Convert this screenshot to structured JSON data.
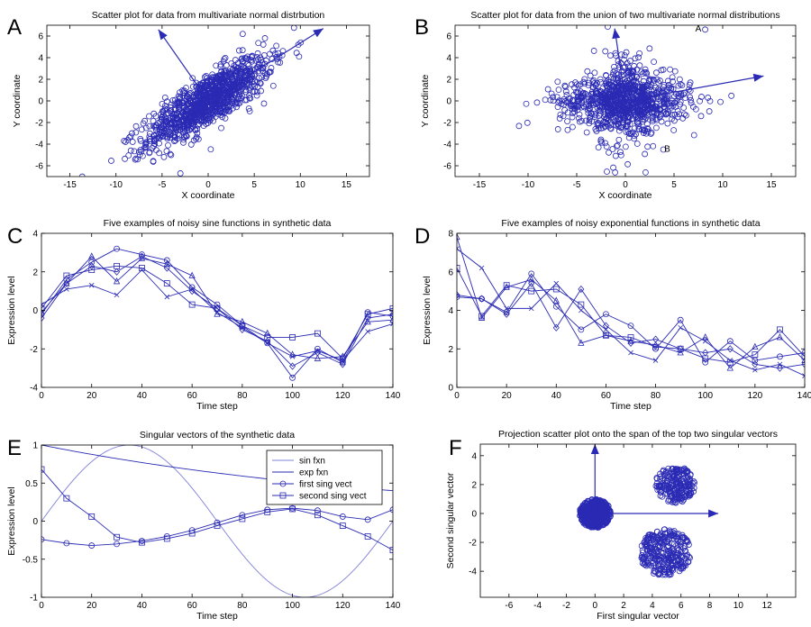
{
  "colors": {
    "series": "#2a2ab4",
    "light_series": "#8080d8",
    "axis": "#000000"
  },
  "chart_data": [
    {
      "panel": "A",
      "type": "scatter",
      "title": "Scatter plot for data from multivariate normal distrbution",
      "xlabel": "X coordinate",
      "ylabel": "Y coordinate",
      "xlim": [
        -17.5,
        17.5
      ],
      "ylim": [
        -7,
        7
      ],
      "xticks": [
        -15,
        -10,
        -5,
        0,
        5,
        10,
        15
      ],
      "yticks": [
        -6,
        -4,
        -2,
        0,
        2,
        4,
        6
      ],
      "cloud": {
        "n": 1100,
        "center": [
          0,
          0
        ],
        "direction_deg": 29,
        "sd_major": 3.8,
        "sd_minor": 1.05
      },
      "arrows": [
        {
          "from": [
            0,
            0
          ],
          "to": [
            12.5,
            6.7
          ]
        },
        {
          "from": [
            0,
            0
          ],
          "to": [
            -5.4,
            6.6
          ]
        }
      ],
      "annotations": []
    },
    {
      "panel": "B",
      "type": "scatter",
      "title": "Scatter plot for data from the union of two multivariate normal distributions",
      "xlabel": "X coordinate",
      "ylabel": "Y coordinate",
      "xlim": [
        -17.5,
        17.5
      ],
      "ylim": [
        -7,
        7
      ],
      "xticks": [
        -15,
        -10,
        -5,
        0,
        5,
        10,
        15
      ],
      "yticks": [
        -6,
        -4,
        -2,
        0,
        2,
        4,
        6
      ],
      "clouds": [
        {
          "n": 700,
          "center": [
            0,
            0
          ],
          "sd_x": 3.4,
          "sd_y": 1.1
        },
        {
          "n": 300,
          "center": [
            0,
            0
          ],
          "sd_x": 1.6,
          "sd_y": 2.5
        }
      ],
      "arrows": [
        {
          "from": [
            0,
            0
          ],
          "to": [
            14.2,
            2.3
          ]
        },
        {
          "from": [
            0,
            0
          ],
          "to": [
            -1.1,
            6.7
          ]
        }
      ],
      "annotations": [
        {
          "text": "A",
          "x": 7.5,
          "y": 6.4,
          "marker": [
            8.2,
            6.6
          ]
        },
        {
          "text": "B",
          "x": 4.3,
          "y": -4.7,
          "marker": [
            3.9,
            -4.5
          ]
        }
      ]
    },
    {
      "panel": "C",
      "type": "line",
      "title": "Five examples of noisy sine functions in synthetic data",
      "xlabel": "Time step",
      "ylabel": "Expression level",
      "xlim": [
        0,
        140
      ],
      "ylim": [
        -4,
        4
      ],
      "xticks": [
        0,
        20,
        40,
        60,
        80,
        100,
        120,
        140
      ],
      "yticks": [
        -4,
        -2,
        0,
        2,
        4
      ],
      "x": [
        0,
        10,
        20,
        30,
        40,
        50,
        60,
        70,
        80,
        90,
        100,
        110,
        120,
        130,
        140
      ],
      "series": [
        {
          "marker": "circle",
          "values": [
            -0.2,
            1.6,
            2.5,
            3.2,
            2.9,
            2.6,
            1.2,
            0.3,
            -0.8,
            -1.7,
            -3.5,
            -2.0,
            -2.7,
            -0.1,
            -0.3
          ]
        },
        {
          "marker": "square",
          "values": [
            0.1,
            1.8,
            2.1,
            2.3,
            2.2,
            1.4,
            0.3,
            0.1,
            -0.8,
            -1.4,
            -1.4,
            -1.2,
            -2.5,
            -0.2,
            0.1
          ]
        },
        {
          "marker": "triangle",
          "values": [
            -0.1,
            1.4,
            2.8,
            1.5,
            2.7,
            2.4,
            1.8,
            -0.2,
            -0.6,
            -1.2,
            -2.3,
            -2.5,
            -2.4,
            -0.6,
            -0.5
          ]
        },
        {
          "marker": "x",
          "values": [
            0.3,
            1.1,
            1.3,
            0.8,
            2.1,
            0.7,
            1.1,
            -0.1,
            -0.9,
            -1.7,
            -2.4,
            -2.1,
            -2.6,
            -1.1,
            -0.7
          ]
        },
        {
          "marker": "diamond",
          "values": [
            -0.4,
            1.4,
            2.3,
            2.0,
            2.8,
            2.2,
            1.0,
            0.1,
            -1.0,
            -1.6,
            -2.9,
            -2.2,
            -2.8,
            -0.4,
            -0.2
          ]
        }
      ]
    },
    {
      "panel": "D",
      "type": "line",
      "title": "Five examples of noisy exponential functions in synthetic data",
      "xlabel": "Time step",
      "ylabel": "Expression level",
      "xlim": [
        0,
        140
      ],
      "ylim": [
        0,
        8
      ],
      "xticks": [
        0,
        20,
        40,
        60,
        80,
        100,
        120,
        140
      ],
      "yticks": [
        0,
        2,
        4,
        6,
        8
      ],
      "x": [
        0,
        10,
        20,
        30,
        40,
        50,
        60,
        70,
        80,
        90,
        100,
        110,
        120,
        130,
        140
      ],
      "series": [
        {
          "marker": "circle",
          "values": [
            4.7,
            4.6,
            3.9,
            5.9,
            4.2,
            3.0,
            3.8,
            3.2,
            2.0,
            3.5,
            1.3,
            2.4,
            1.4,
            1.6,
            1.8
          ]
        },
        {
          "marker": "square",
          "values": [
            6.2,
            3.7,
            5.3,
            5.0,
            5.1,
            4.3,
            2.7,
            2.6,
            2.1,
            2.0,
            1.5,
            1.3,
            1.7,
            3.0,
            1.6
          ]
        },
        {
          "marker": "triangle",
          "values": [
            7.8,
            3.6,
            5.2,
            5.6,
            4.5,
            2.3,
            2.7,
            2.4,
            2.2,
            1.8,
            2.6,
            1.0,
            2.1,
            2.6,
            1.4
          ]
        },
        {
          "marker": "x",
          "values": [
            7.2,
            6.2,
            4.1,
            4.1,
            5.4,
            4.0,
            3.0,
            1.8,
            1.4,
            3.1,
            2.4,
            1.4,
            0.9,
            1.2,
            0.6
          ]
        },
        {
          "marker": "diamond",
          "values": [
            4.8,
            4.6,
            3.8,
            5.4,
            3.1,
            5.1,
            3.2,
            2.3,
            2.5,
            2.0,
            1.8,
            2.0,
            1.2,
            1.0,
            1.2
          ]
        }
      ]
    },
    {
      "panel": "E",
      "type": "line",
      "title": "Singular vectors of the synthetic data",
      "xlabel": "Time step",
      "ylabel": "Expression level",
      "xlim": [
        0,
        140
      ],
      "ylim": [
        -1,
        1
      ],
      "xticks": [
        0,
        20,
        40,
        60,
        80,
        100,
        120,
        140
      ],
      "yticks": [
        -1,
        -0.5,
        0,
        0.5,
        1
      ],
      "ytick_labels": [
        "-1",
        "-0.5",
        "0",
        "0.5",
        "1"
      ],
      "legend": {
        "position": "top-right",
        "entries": [
          "sin fxn",
          "exp fxn",
          "first sing vect",
          "second sing vect"
        ]
      },
      "curves": {
        "sin": {
          "amplitude": 1,
          "period": 140
        },
        "exp": {
          "start": 1,
          "end": 0.4
        }
      },
      "x": [
        0,
        10,
        20,
        30,
        40,
        50,
        60,
        70,
        80,
        90,
        100,
        110,
        120,
        130,
        140
      ],
      "series": [
        {
          "name": "sin fxn",
          "style": "light"
        },
        {
          "name": "exp fxn",
          "style": "dark"
        },
        {
          "name": "first sing vect",
          "marker": "circle",
          "values": [
            -0.24,
            -0.29,
            -0.32,
            -0.3,
            -0.26,
            -0.2,
            -0.12,
            -0.02,
            0.08,
            0.15,
            0.17,
            0.14,
            0.06,
            0.02,
            0.15
          ]
        },
        {
          "name": "second sing vect",
          "marker": "square",
          "values": [
            0.68,
            0.3,
            0.06,
            -0.21,
            -0.28,
            -0.23,
            -0.16,
            -0.06,
            0.03,
            0.12,
            0.16,
            0.08,
            -0.06,
            -0.2,
            -0.38
          ]
        }
      ]
    },
    {
      "panel": "F",
      "type": "scatter",
      "title": "Projection scatter plot onto the span of the top two singular vectors",
      "xlabel": "First singular vector",
      "ylabel": "Second singular vector",
      "xlim": [
        -8,
        14
      ],
      "ylim": [
        -5.8,
        4.8
      ],
      "xticks": [
        -6,
        -4,
        -2,
        0,
        2,
        4,
        6,
        8,
        10,
        12
      ],
      "yticks": [
        -4,
        -2,
        0,
        2,
        4
      ],
      "clusters": [
        {
          "n": 520,
          "center": [
            0,
            0
          ],
          "radius": 1.1
        },
        {
          "n": 220,
          "center": [
            5.6,
            2.0
          ],
          "radius": 1.4
        },
        {
          "n": 300,
          "center": [
            4.9,
            -2.7
          ],
          "radius": 1.8
        }
      ],
      "arrows": [
        {
          "from": [
            0,
            0
          ],
          "to": [
            8.6,
            0
          ]
        },
        {
          "from": [
            0,
            0
          ],
          "to": [
            0,
            4.8
          ]
        }
      ]
    }
  ]
}
